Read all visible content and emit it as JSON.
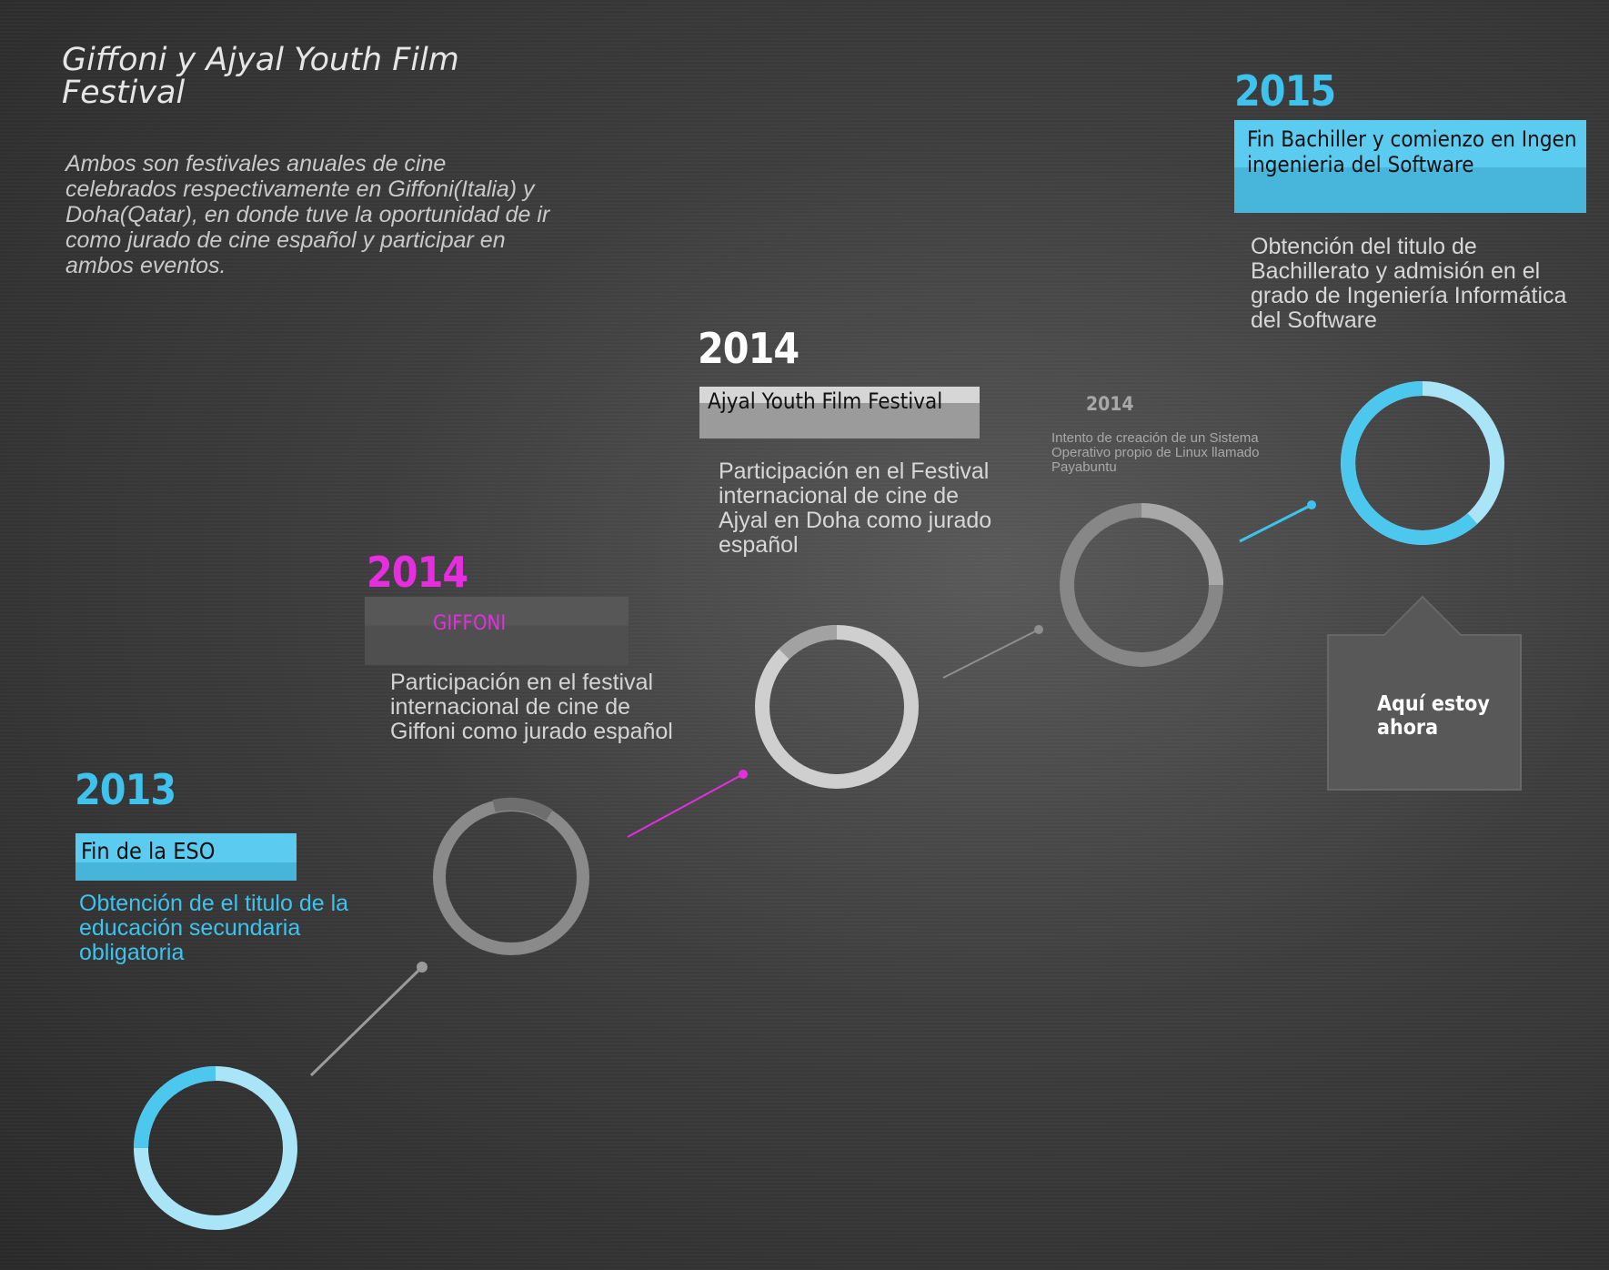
{
  "header": {
    "title": "Giffoni y Ajyal Youth Film Festival",
    "intro": "Ambos son festivales anuales de cine celebrados respectivamente en Giffoni(Italia) y Doha(Qatar), en donde tuve la oportunidad de ir como jurado de cine español y participar en ambos eventos."
  },
  "milestones": [
    {
      "year": "2013",
      "label": "Fin de la ESO",
      "description": "Obtención de el titulo de la educación secundaria obligatoria",
      "accent": "#4cc8ef"
    },
    {
      "year": "2014",
      "label": "GIFFONI",
      "description": "Participación en el festival internacional de cine de Giffoni como jurado español",
      "accent": "#e62ee0"
    },
    {
      "year": "2014",
      "label": "Ajyal Youth Film Festival",
      "description": "Participación en el Festival internacional de cine de Ajyal en Doha como jurado español",
      "accent": "#ffffff"
    },
    {
      "year": "2014",
      "label": "",
      "description": "Intento de creación de un Sistema Operativo propio de Linux llamado Payabuntu",
      "accent": "#a8a8a8"
    },
    {
      "year": "2015",
      "label": "Fin Bachiller y comienzo en Ingen ingenieria del Software",
      "description": "Obtención del titulo de Bachillerato y admisión en el grado de Ingeniería Informática del Software",
      "accent": "#4cc8ef"
    }
  ],
  "callout": {
    "text": "Aquí estoy ahora"
  },
  "colors": {
    "cyan": "#4cc8ef",
    "light_cyan": "#a9e4f7",
    "magenta": "#e62ee0",
    "grey": "#8a8a8a",
    "light_grey": "#cfcfcf"
  }
}
